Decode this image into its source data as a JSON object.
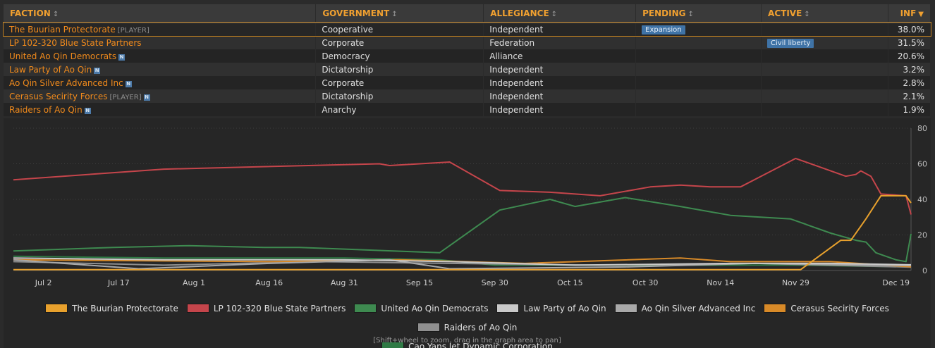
{
  "table": {
    "headers": [
      {
        "label": "FACTION",
        "icon": "sort-both-icon"
      },
      {
        "label": "GOVERNMENT",
        "icon": "sort-both-icon"
      },
      {
        "label": "ALLEGIANCE",
        "icon": "sort-both-icon"
      },
      {
        "label": "PENDING",
        "icon": "sort-both-icon"
      },
      {
        "label": "ACTIVE",
        "icon": "sort-both-icon"
      },
      {
        "label": "INF",
        "icon": "sort-desc-icon"
      }
    ],
    "rows": [
      {
        "faction": "The Buurian Protectorate",
        "tag": "[PLAYER]",
        "badge": "",
        "government": "Cooperative",
        "allegiance": "Independent",
        "pending": "Expansion",
        "active": "",
        "inf": "38.0%"
      },
      {
        "faction": "LP 102-320 Blue State Partners",
        "tag": "",
        "badge": "",
        "government": "Corporate",
        "allegiance": "Federation",
        "pending": "",
        "active": "Civil liberty",
        "inf": "31.5%"
      },
      {
        "faction": "United Ao Qin Democrats",
        "tag": "",
        "badge": "N",
        "government": "Democracy",
        "allegiance": "Alliance",
        "pending": "",
        "active": "",
        "inf": "20.6%"
      },
      {
        "faction": "Law Party of Ao Qin",
        "tag": "",
        "badge": "N",
        "government": "Dictatorship",
        "allegiance": "Independent",
        "pending": "",
        "active": "",
        "inf": "3.2%"
      },
      {
        "faction": "Ao Qin Silver Advanced Inc",
        "tag": "",
        "badge": "N",
        "government": "Corporate",
        "allegiance": "Independent",
        "pending": "",
        "active": "",
        "inf": "2.8%"
      },
      {
        "faction": "Cerasus Secirity Forces",
        "tag": "[PLAYER]",
        "badge": "N",
        "government": "Dictatorship",
        "allegiance": "Independent",
        "pending": "",
        "active": "",
        "inf": "2.1%"
      },
      {
        "faction": "Raiders of Ao Qin",
        "tag": "",
        "badge": "N",
        "government": "Anarchy",
        "allegiance": "Independent",
        "pending": "",
        "active": "",
        "inf": "1.9%"
      }
    ]
  },
  "chart_data": {
    "type": "line",
    "title": "",
    "xlabel": "",
    "ylabel": "",
    "x_range": [
      "Jun 26",
      "Dec 22"
    ],
    "ylim": [
      0,
      80
    ],
    "y_ticks": [
      0,
      20,
      40,
      60,
      80
    ],
    "x_ticks": [
      "Jul 2",
      "Jul 17",
      "Aug 1",
      "Aug 16",
      "Aug 31",
      "Sep 15",
      "Sep 30",
      "Oct 15",
      "Oct 30",
      "Nov 14",
      "Nov 29",
      "Dec 19"
    ],
    "grid": "horizontal dotted",
    "y_axis_side": "right",
    "legend_position": "bottom",
    "series": [
      {
        "name": "The Buurian Protectorate",
        "color": "#e8a12d",
        "points": [
          [
            "Jun 26",
            0.5
          ],
          [
            "Nov 30",
            0.5
          ],
          [
            "Dec 8",
            17
          ],
          [
            "Dec 10",
            17
          ],
          [
            "Dec 12",
            25
          ],
          [
            "Dec 13",
            29
          ],
          [
            "Dec 16",
            42
          ],
          [
            "Dec 21",
            42
          ],
          [
            "Dec 22",
            38
          ]
        ]
      },
      {
        "name": "LP 102-320 Blue State Partners",
        "color": "#c5454b",
        "points": [
          [
            "Jun 26",
            51
          ],
          [
            "Jul 26",
            57
          ],
          [
            "Sep 7",
            60
          ],
          [
            "Sep 9",
            59
          ],
          [
            "Sep 21",
            61
          ],
          [
            "Oct 1",
            45
          ],
          [
            "Oct 11",
            44
          ],
          [
            "Oct 21",
            42
          ],
          [
            "Oct 31",
            47
          ],
          [
            "Nov 6",
            48
          ],
          [
            "Nov 12",
            47
          ],
          [
            "Nov 18",
            47
          ],
          [
            "Nov 29",
            63
          ],
          [
            "Dec 9",
            53
          ],
          [
            "Dec 11",
            54
          ],
          [
            "Dec 12",
            56
          ],
          [
            "Dec 14",
            53
          ],
          [
            "Dec 16",
            43
          ],
          [
            "Dec 21",
            42
          ],
          [
            "Dec 22",
            31.5
          ]
        ]
      },
      {
        "name": "United Ao Qin Democrats",
        "color": "#3e8a50",
        "points": [
          [
            "Jun 26",
            11
          ],
          [
            "Jul 16",
            13
          ],
          [
            "Jul 31",
            14
          ],
          [
            "Aug 15",
            13
          ],
          [
            "Aug 22",
            13
          ],
          [
            "Sep 19",
            10
          ],
          [
            "Oct 1",
            34
          ],
          [
            "Oct 11",
            40
          ],
          [
            "Oct 16",
            36
          ],
          [
            "Oct 26",
            41
          ],
          [
            "Nov 6",
            36
          ],
          [
            "Nov 16",
            31
          ],
          [
            "Nov 28",
            29
          ],
          [
            "Dec 6",
            21
          ],
          [
            "Dec 11",
            17
          ],
          [
            "Dec 13",
            16
          ],
          [
            "Dec 15",
            10
          ],
          [
            "Dec 17",
            8
          ],
          [
            "Dec 19",
            6
          ],
          [
            "Dec 21",
            5
          ],
          [
            "Dec 22",
            20.6
          ]
        ]
      },
      {
        "name": "Law Party of Ao Qin",
        "color": "#c9c9c9",
        "points": [
          [
            "Jun 26",
            7
          ],
          [
            "Jul 26",
            6
          ],
          [
            "Aug 31",
            6
          ],
          [
            "Sep 21",
            5
          ],
          [
            "Oct 16",
            3
          ],
          [
            "Nov 16",
            4
          ],
          [
            "Dec 6",
            4
          ],
          [
            "Dec 22",
            3.2
          ]
        ]
      },
      {
        "name": "Ao Qin Silver Advanced Inc",
        "color": "#a9a9a9",
        "points": [
          [
            "Jun 26",
            6
          ],
          [
            "Jul 21",
            1
          ],
          [
            "Aug 16",
            4
          ],
          [
            "Sep 9",
            6
          ],
          [
            "Sep 21",
            1
          ],
          [
            "Oct 26",
            2
          ],
          [
            "Nov 21",
            4
          ],
          [
            "Dec 22",
            2.8
          ]
        ]
      },
      {
        "name": "Cerasus Secirity Forces",
        "color": "#d88a28",
        "points": [
          [
            "Jun 26",
            6
          ],
          [
            "Aug 16",
            5
          ],
          [
            "Sep 11",
            6
          ],
          [
            "Oct 6",
            4
          ],
          [
            "Nov 6",
            7
          ],
          [
            "Nov 16",
            5
          ],
          [
            "Dec 6",
            5
          ],
          [
            "Dec 22",
            2.1
          ]
        ]
      },
      {
        "name": "Raiders of Ao Qin",
        "color": "#8f8f8f",
        "points": [
          [
            "Jun 26",
            5
          ],
          [
            "Jul 26",
            3
          ],
          [
            "Aug 26",
            5
          ],
          [
            "Sep 21",
            4
          ],
          [
            "Oct 21",
            3
          ],
          [
            "Nov 21",
            4
          ],
          [
            "Dec 22",
            1.9
          ]
        ]
      },
      {
        "name": "Cao Yans Jet Dynamic Corporation",
        "color": "#2f7a45",
        "points": [
          [
            "Jun 26",
            8
          ],
          [
            "Jul 26",
            7
          ],
          [
            "Aug 31",
            7
          ],
          [
            "Sep 19",
            6
          ],
          [
            "Sep 30",
            3
          ],
          [
            "Oct 31",
            3
          ],
          [
            "Nov 30",
            3
          ],
          [
            "Dec 22",
            2
          ]
        ]
      }
    ]
  },
  "chart_hint": "[Shift+wheel to zoom, drag in the graph area to pan]"
}
